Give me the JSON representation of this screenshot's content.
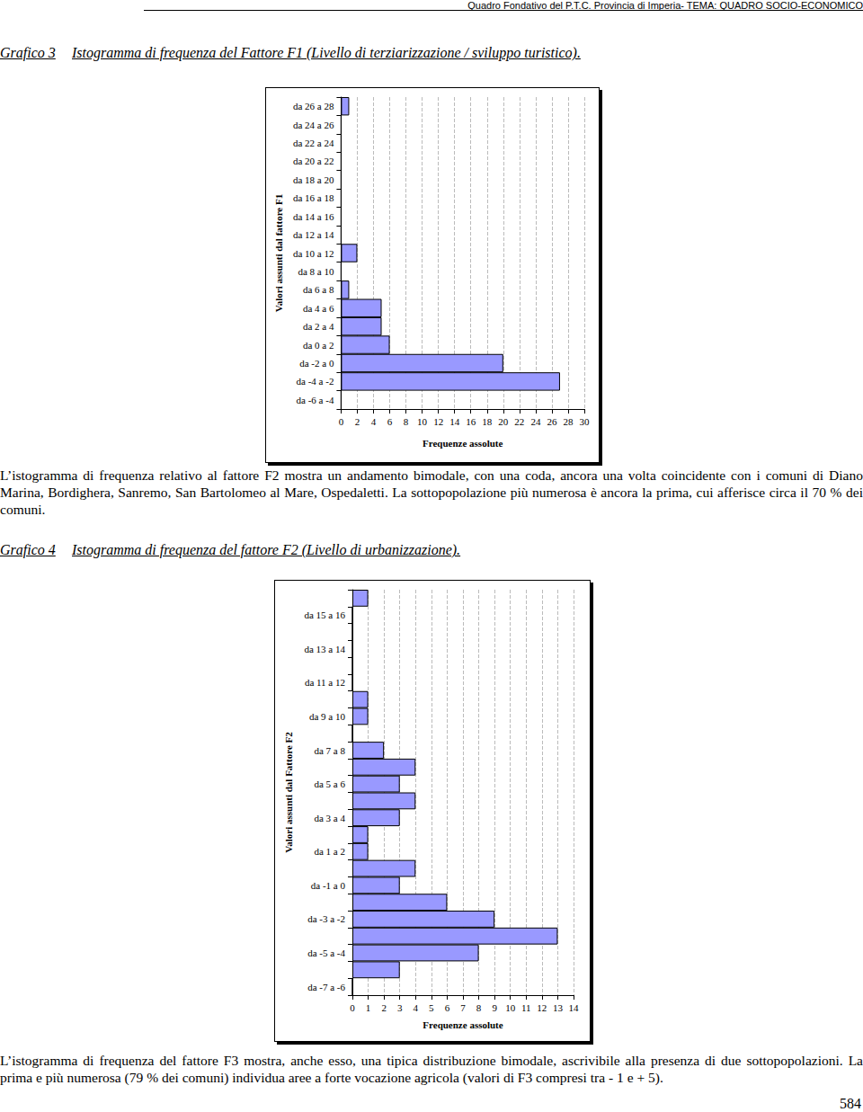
{
  "header": "Quadro Fondativo del P.T.C. Provincia di Imperia- TEMA: QUADRO SOCIO-ECONOMICO",
  "captions": [
    {
      "label": "Grafico 3",
      "text": "Istogramma di frequenza del Fattore F1 (Livello di terziarizzazione / sviluppo turistico)."
    },
    {
      "label": "Grafico 4",
      "text": "Istogramma di frequenza del fattore F2 (Livello di urbanizzazione)."
    }
  ],
  "paragraphs": [
    "L’istogramma di frequenza relativo al fattore F2 mostra un andamento bimodale, con una coda, ancora una volta coincidente con i comuni di Diano Marina, Bordighera, Sanremo, San Bartolomeo al Mare, Ospedaletti. La sottopopolazione più numerosa è ancora la prima, cui afferisce circa il 70 % dei comuni.",
    "L’istogramma di frequenza del fattore F3 mostra, anche esso, una tipica distribuzione bimodale, ascrivibile alla presenza di due sottopopolazioni. La prima e più numerosa (79 % dei comuni) individua aree a forte vocazione agricola (valori di F3 compresi tra - 1 e + 5)."
  ],
  "page_number": "584",
  "chart_data": [
    {
      "type": "bar",
      "orientation": "horizontal",
      "xlabel": "Frequenze assolute",
      "ylabel": "Valori assunti dal fattore F1",
      "categories": [
        "da -6 a -4",
        "da -4 a -2",
        "da -2 a 0",
        "da 0 a 2",
        "da 2 a 4",
        "da 4 a 6",
        "da 6 a 8",
        "da 8 a 10",
        "da 10 a 12",
        "da 12 a 14",
        "da 14 a 16",
        "da 16 a 18",
        "da 18 a 20",
        "da 20 a 22",
        "da 22 a 24",
        "da 24 a 26",
        "da 26 a 28"
      ],
      "values": [
        0,
        27,
        20,
        6,
        5,
        5,
        1,
        0,
        2,
        0,
        0,
        0,
        0,
        0,
        0,
        0,
        1
      ],
      "color": "#9999ff",
      "xlim": [
        0,
        30
      ],
      "xticks": [
        0,
        2,
        4,
        6,
        8,
        10,
        12,
        14,
        16,
        18,
        20,
        22,
        24,
        26,
        28,
        30
      ],
      "grid": true
    },
    {
      "type": "bar",
      "orientation": "horizontal",
      "xlabel": "Frequenze assolute",
      "ylabel": "Valori assunti dal Fattore F2",
      "categories": [
        "da -7 a -6",
        null,
        "da -5 a -4",
        null,
        "da -3 a -2",
        null,
        "da -1 a 0",
        null,
        "da 1 a 2",
        null,
        "da 3 a 4",
        null,
        "da 5 a 6",
        null,
        "da 7 a 8",
        null,
        "da 9 a 10",
        null,
        "da 11 a 12",
        null,
        "da 13 a 14",
        null,
        "da 15 a 16",
        null
      ],
      "values": [
        0,
        3,
        8,
        13,
        9,
        6,
        3,
        4,
        1,
        1,
        3,
        4,
        3,
        4,
        2,
        0,
        1,
        1,
        0,
        0,
        0,
        0,
        0,
        1
      ],
      "color": "#9999ff",
      "xlim": [
        0,
        14
      ],
      "xticks": [
        0,
        1,
        2,
        3,
        4,
        5,
        6,
        7,
        8,
        9,
        10,
        11,
        12,
        13,
        14
      ],
      "grid": true
    }
  ]
}
